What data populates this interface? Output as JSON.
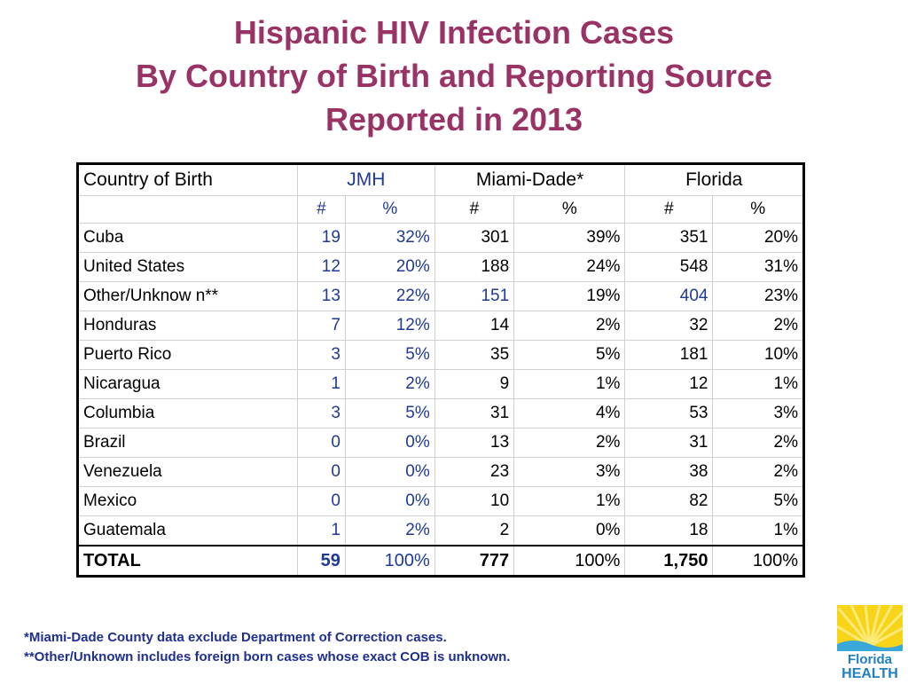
{
  "title": {
    "line1": "Hispanic HIV Infection Cases",
    "line2": "By Country of Birth and Reporting Source",
    "line3": "Reported in 2013"
  },
  "table": {
    "headers": {
      "country": "Country of Birth",
      "jmh": "JMH",
      "miami": "Miami-Dade*",
      "florida": "Florida",
      "num": "#",
      "pct": "%"
    },
    "rows": [
      {
        "country": "Cuba",
        "jmh_n": "19",
        "jmh_p": "32%",
        "md_n": "301",
        "md_p": "39%",
        "fl_n": "351",
        "fl_p": "20%"
      },
      {
        "country": "United States",
        "jmh_n": "12",
        "jmh_p": "20%",
        "md_n": "188",
        "md_p": "24%",
        "fl_n": "548",
        "fl_p": "31%"
      },
      {
        "country": "Other/Unknow n**",
        "jmh_n": "13",
        "jmh_p": "22%",
        "md_n": "151",
        "md_p": "19%",
        "fl_n": "404",
        "fl_p": "23%"
      },
      {
        "country": "Honduras",
        "jmh_n": "7",
        "jmh_p": "12%",
        "md_n": "14",
        "md_p": "2%",
        "fl_n": "32",
        "fl_p": "2%"
      },
      {
        "country": "Puerto Rico",
        "jmh_n": "3",
        "jmh_p": "5%",
        "md_n": "35",
        "md_p": "5%",
        "fl_n": "181",
        "fl_p": "10%"
      },
      {
        "country": "Nicaragua",
        "jmh_n": "1",
        "jmh_p": "2%",
        "md_n": "9",
        "md_p": "1%",
        "fl_n": "12",
        "fl_p": "1%"
      },
      {
        "country": "Columbia",
        "jmh_n": "3",
        "jmh_p": "5%",
        "md_n": "31",
        "md_p": "4%",
        "fl_n": "53",
        "fl_p": "3%"
      },
      {
        "country": "Brazil",
        "jmh_n": "0",
        "jmh_p": "0%",
        "md_n": "13",
        "md_p": "2%",
        "fl_n": "31",
        "fl_p": "2%"
      },
      {
        "country": "Venezuela",
        "jmh_n": "0",
        "jmh_p": "0%",
        "md_n": "23",
        "md_p": "3%",
        "fl_n": "38",
        "fl_p": "2%"
      },
      {
        "country": "Mexico",
        "jmh_n": "0",
        "jmh_p": "0%",
        "md_n": "10",
        "md_p": "1%",
        "fl_n": "82",
        "fl_p": "5%"
      },
      {
        "country": "Guatemala",
        "jmh_n": "1",
        "jmh_p": "2%",
        "md_n": "2",
        "md_p": "0%",
        "fl_n": "18",
        "fl_p": "1%"
      }
    ],
    "total": {
      "label": "TOTAL",
      "jmh_n": "59",
      "jmh_p": "100%",
      "md_n": "777",
      "md_p": "100%",
      "fl_n": "1,750",
      "fl_p": "100%"
    }
  },
  "notes": {
    "line1": "*Miami-Dade County data exclude Department of Correction cases.",
    "line2": "**Other/Unknown includes foreign born cases whose exact COB is unknown."
  },
  "logo": {
    "word1": "Florida",
    "word2": "HEALTH",
    "colors": {
      "sun": "#f7d417",
      "sun_light": "#fbe97a",
      "wave": "#3aa8d8",
      "text": "#1f7fc0"
    }
  }
}
